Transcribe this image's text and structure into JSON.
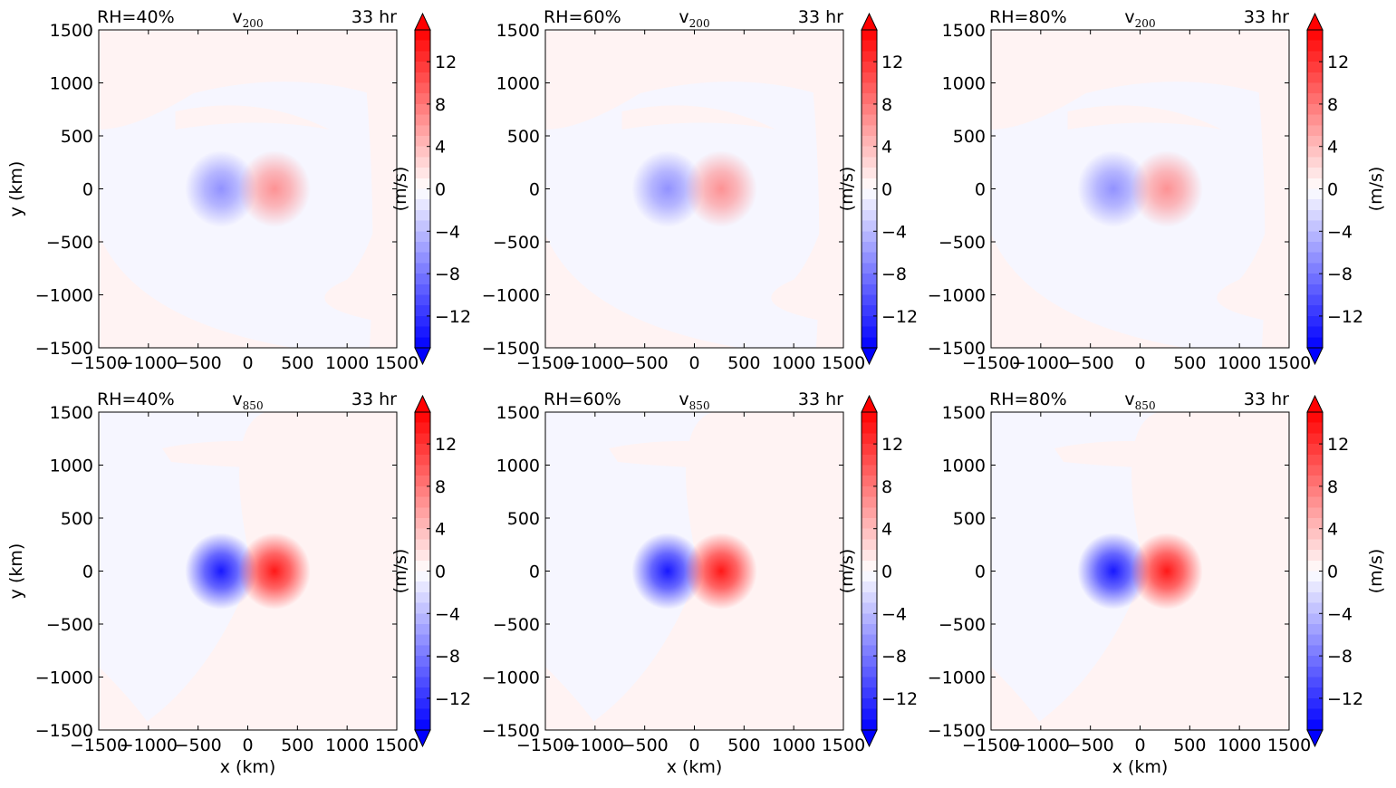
{
  "figure": {
    "tick_values": [
      -1500,
      -1000,
      -500,
      0,
      500,
      1000,
      1500
    ],
    "tick_labels": [
      "−1500",
      "−1000",
      "−500",
      "0",
      "500",
      "1000",
      "1500"
    ],
    "xlabel": "x (km)",
    "ylabel": "y (km)",
    "colorbar": {
      "label": "(m/s)",
      "range": [
        -15,
        15
      ],
      "extend": "both",
      "tick_values": [
        -12,
        -8,
        -4,
        0,
        4,
        8,
        12
      ],
      "tick_labels": [
        "−12",
        "−8",
        "−4",
        "0",
        "4",
        "8",
        "12"
      ],
      "colormap": "bwr",
      "low_color": "#0000ff",
      "high_color": "#ff0000",
      "mid_color": "#ffffff"
    }
  },
  "chart_data": [
    {
      "type": "heatmap",
      "panel": "top-left",
      "rh_label": "RH=40%",
      "var_main": "v",
      "var_sub": "200",
      "time_label": "33 hr",
      "xlim": [
        -1500,
        1500
      ],
      "ylim": [
        -1500,
        1500
      ],
      "center_peak": 8
    },
    {
      "type": "heatmap",
      "panel": "top-middle",
      "rh_label": "RH=60%",
      "var_main": "v",
      "var_sub": "200",
      "time_label": "33 hr",
      "xlim": [
        -1500,
        1500
      ],
      "ylim": [
        -1500,
        1500
      ],
      "center_peak": 8
    },
    {
      "type": "heatmap",
      "panel": "top-right",
      "rh_label": "RH=80%",
      "var_main": "v",
      "var_sub": "200",
      "time_label": "33 hr",
      "xlim": [
        -1500,
        1500
      ],
      "ylim": [
        -1500,
        1500
      ],
      "center_peak": 8
    },
    {
      "type": "heatmap",
      "panel": "bottom-left",
      "rh_label": "RH=40%",
      "var_main": "v",
      "var_sub": "850",
      "time_label": "33 hr",
      "xlim": [
        -1500,
        1500
      ],
      "ylim": [
        -1500,
        1500
      ],
      "center_peak": 14
    },
    {
      "type": "heatmap",
      "panel": "bottom-middle",
      "rh_label": "RH=60%",
      "var_main": "v",
      "var_sub": "850",
      "time_label": "33 hr",
      "xlim": [
        -1500,
        1500
      ],
      "ylim": [
        -1500,
        1500
      ],
      "center_peak": 14
    },
    {
      "type": "heatmap",
      "panel": "bottom-right",
      "rh_label": "RH=80%",
      "var_main": "v",
      "var_sub": "850",
      "time_label": "33 hr",
      "xlim": [
        -1500,
        1500
      ],
      "ylim": [
        -1500,
        1500
      ],
      "center_peak": 14
    }
  ]
}
